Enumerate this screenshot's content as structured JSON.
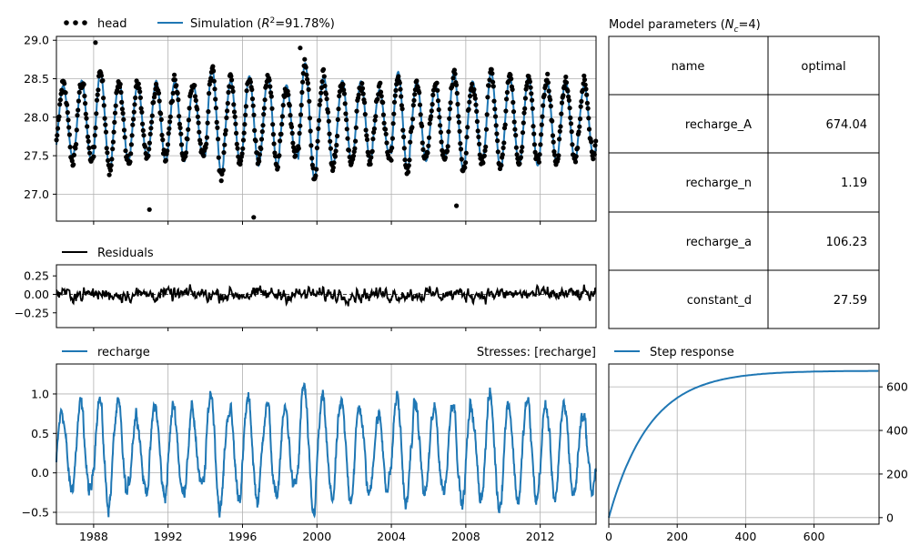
{
  "chart_data": [
    {
      "type": "scatter+line",
      "panel": "head",
      "legend": [
        {
          "label": "head",
          "marker": "dots",
          "color": "#000000"
        },
        {
          "label": "Simulation (R²=91.78%)",
          "label_prefix": "Simulation (",
          "label_R": "R",
          "label_sup": "2",
          "label_suffix": "=91.78%)",
          "marker": "line",
          "color": "#1f77b4"
        }
      ],
      "xlim": [
        1986,
        2015
      ],
      "ylim": [
        26.65,
        29.05
      ],
      "yticks": [
        27.0,
        27.5,
        28.0,
        28.5,
        29.0
      ],
      "yticklabels": [
        "27.0",
        "27.5",
        "28.0",
        "28.5",
        "29.0"
      ],
      "grid": true,
      "simulation": {
        "mean": 27.95,
        "amplitude": 0.55,
        "r2_percent": 91.78
      },
      "observed_extremes": [
        {
          "x": 1988.1,
          "y": 28.97
        },
        {
          "x": 1996.6,
          "y": 26.7
        },
        {
          "x": 1991.0,
          "y": 26.8
        },
        {
          "x": 1999.1,
          "y": 28.9
        },
        {
          "x": 2007.5,
          "y": 26.85
        }
      ]
    },
    {
      "type": "line",
      "panel": "residuals",
      "legend": [
        {
          "label": "Residuals",
          "color": "#000000"
        }
      ],
      "xlim": [
        1986,
        2015
      ],
      "ylim": [
        -0.45,
        0.4
      ],
      "yticks": [
        0.25,
        0.0,
        -0.25
      ],
      "yticklabels": [
        "0.25",
        "0.00",
        "−0.25"
      ],
      "zero_line": "dashed",
      "grid": false
    },
    {
      "type": "line",
      "panel": "stresses",
      "title_right": "Stresses: [recharge]",
      "legend": [
        {
          "label": "recharge",
          "color": "#1f77b4"
        }
      ],
      "xlim": [
        1986,
        2015
      ],
      "ylim": [
        -0.65,
        1.38
      ],
      "yticks": [
        1.0,
        0.5,
        0.0,
        -0.5
      ],
      "yticklabels": [
        "1.0",
        "0.5",
        "0.0",
        "−0.5"
      ],
      "xticks": [
        1988,
        1992,
        1996,
        2000,
        2004,
        2008,
        2012
      ],
      "xticklabels": [
        "1988",
        "1992",
        "1996",
        "2000",
        "2004",
        "2008",
        "2012"
      ],
      "grid": true
    },
    {
      "type": "line",
      "panel": "step_response",
      "legend": [
        {
          "label": "Step response",
          "color": "#1f77b4"
        }
      ],
      "xlim": [
        0,
        790
      ],
      "ylim": [
        -30,
        705
      ],
      "xticks": [
        0,
        200,
        400,
        600
      ],
      "xticklabels": [
        "0",
        "200",
        "400",
        "600"
      ],
      "yticks": [
        0,
        200,
        400,
        600
      ],
      "yticklabels": [
        "0",
        "200",
        "400",
        "600"
      ],
      "y_axis_side": "right",
      "grid": true,
      "A": 674.04,
      "a": 106.23,
      "n": 1.19
    },
    {
      "type": "table",
      "panel": "parameters",
      "title_prefix": "Model parameters (",
      "title_N": "N",
      "title_sub": "c",
      "title_suffix": "=4)",
      "columns": [
        "name",
        "optimal"
      ],
      "rows": [
        {
          "name": "recharge_A",
          "value": "674.04"
        },
        {
          "name": "recharge_n",
          "value": "1.19"
        },
        {
          "name": "recharge_a",
          "value": "106.23"
        },
        {
          "name": "constant_d",
          "value": "27.59"
        }
      ]
    }
  ],
  "colors": {
    "sim": "#1f77b4",
    "obs": "#000000",
    "grid": "#b0b0b0"
  }
}
